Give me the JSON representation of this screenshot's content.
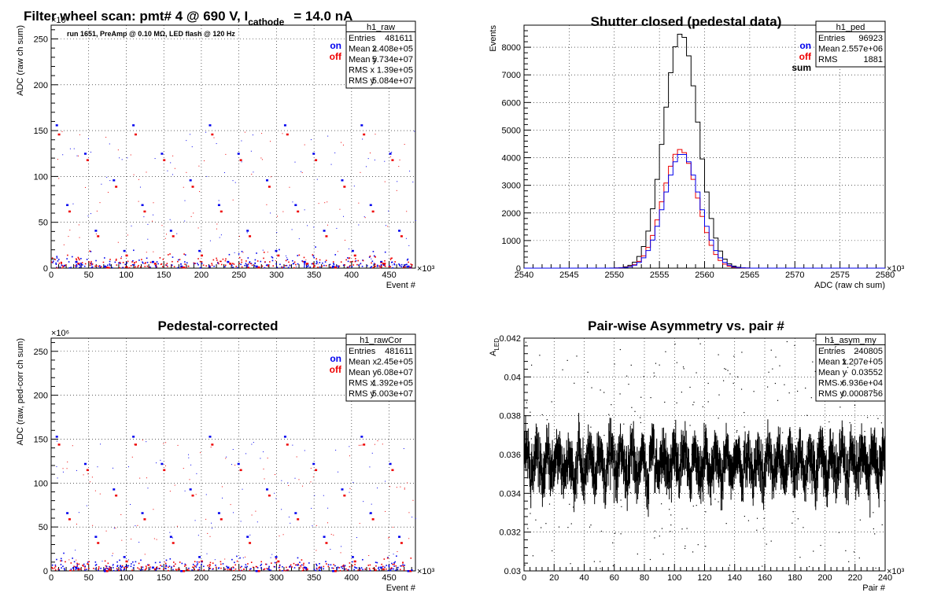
{
  "chart_data": [
    {
      "id": "raw",
      "type": "scatter",
      "title": "Filter wheel scan: pmt#   4 @   690 V, I",
      "title_sub": "cathode",
      "title_tail": "= 14.0 nA",
      "note": "run 1651, PreAmp @ 0.10 MΩ, LED flash @  120 Hz",
      "xlabel": "Event #",
      "ylabel": "ADC (raw ch sum)",
      "x_exponent": "×10³",
      "y_exponent": "×10⁶",
      "xlim": [
        0,
        485
      ],
      "ylim": [
        0,
        265
      ],
      "xticks": [
        "0",
        "50",
        "100",
        "150",
        "200",
        "250",
        "300",
        "350",
        "400",
        "450"
      ],
      "yticks": [
        "0",
        "50",
        "100",
        "150",
        "200",
        "250"
      ],
      "legend": [
        {
          "name": "on",
          "color": "#0000ee"
        },
        {
          "name": "off",
          "color": "#ee0000"
        }
      ],
      "stats": {
        "name": "h1_raw",
        "rows": [
          [
            "Entries",
            "481611"
          ],
          [
            "Mean x",
            "2.408e+05"
          ],
          [
            "Mean y",
            "5.734e+07"
          ],
          [
            "RMS x",
            "1.39e+05"
          ],
          [
            "RMS y",
            "5.084e+07"
          ]
        ]
      },
      "on_levels": [
        156,
        125,
        96,
        69,
        41,
        19,
        7,
        2
      ],
      "off_levels": [
        146,
        118,
        89,
        62,
        35,
        14,
        5,
        1
      ],
      "grid": true
    },
    {
      "id": "ped",
      "type": "histogram",
      "title": "Shutter closed (pedestal data)",
      "xlabel": "ADC (raw ch sum)",
      "ylabel": "Events",
      "x_exponent": "×10³",
      "xlim": [
        2540,
        2580
      ],
      "ylim": [
        0,
        8800
      ],
      "xticks": [
        "2540",
        "2545",
        "2550",
        "2555",
        "2560",
        "2565",
        "2570",
        "2575",
        "2580"
      ],
      "yticks": [
        "0",
        "1000",
        "2000",
        "3000",
        "4000",
        "5000",
        "6000",
        "7000",
        "8000"
      ],
      "legend": [
        {
          "name": "on",
          "color": "#0000ee"
        },
        {
          "name": "off",
          "color": "#ee0000"
        },
        {
          "name": "sum",
          "color": "#000000"
        }
      ],
      "stats": {
        "name": "h1_ped",
        "rows": [
          [
            "Entries",
            "96923"
          ],
          [
            "Mean",
            "2.557e+06"
          ],
          [
            "RMS",
            "1881"
          ]
        ]
      },
      "mean": 2557.4,
      "sigma": 1.9,
      "bin_width": 0.5,
      "sum_peak": 8500,
      "on_peak": 4150,
      "off_peak": 4300,
      "grid": true
    },
    {
      "id": "rawcor",
      "type": "scatter",
      "title": "Pedestal-corrected",
      "xlabel": "Event #",
      "ylabel": "ADC (raw, ped-corr ch sum)",
      "x_exponent": "×10³",
      "y_exponent": "×10⁶",
      "xlim": [
        0,
        485
      ],
      "ylim": [
        0,
        265
      ],
      "xticks": [
        "0",
        "50",
        "100",
        "150",
        "200",
        "250",
        "300",
        "350",
        "400",
        "450"
      ],
      "yticks": [
        "0",
        "50",
        "100",
        "150",
        "200",
        "250"
      ],
      "legend": [
        {
          "name": "on",
          "color": "#0000ee"
        },
        {
          "name": "off",
          "color": "#ee0000"
        }
      ],
      "stats": {
        "name": "h1_rawCor",
        "rows": [
          [
            "Entries",
            "481611"
          ],
          [
            "Mean x",
            "2.45e+05"
          ],
          [
            "Mean y",
            "6.08e+07"
          ],
          [
            "RMS x",
            "1.392e+05"
          ],
          [
            "RMS y",
            "5.003e+07"
          ]
        ]
      },
      "on_levels": [
        153,
        122,
        93,
        66,
        39,
        16,
        4,
        0
      ],
      "off_levels": [
        144,
        115,
        86,
        59,
        32,
        11,
        2,
        0
      ],
      "grid": true
    },
    {
      "id": "asym",
      "type": "scatter",
      "title": "Pair-wise Asymmetry vs. pair #",
      "xlabel": "Pair #",
      "ylabel": "A",
      "ylabel_sub": "LED",
      "x_exponent": "×10³",
      "xlim": [
        0,
        240
      ],
      "ylim": [
        0.03,
        0.042
      ],
      "xticks": [
        "0",
        "20",
        "40",
        "60",
        "80",
        "100",
        "120",
        "140",
        "160",
        "180",
        "200",
        "220",
        "240"
      ],
      "yticks": [
        "0.03",
        "0.032",
        "0.034",
        "0.036",
        "0.038",
        "0.04",
        "0.042"
      ],
      "stats": {
        "name": "h1_asym_my",
        "rows": [
          [
            "Entries",
            "240805"
          ],
          [
            "Mean x",
            "1.207e+05"
          ],
          [
            "Mean y",
            "0.03552"
          ],
          [
            "RMS x",
            "6.936e+04"
          ],
          [
            "RMS y",
            "0.0008756"
          ]
        ]
      },
      "band_center": 0.03552,
      "grid": true
    }
  ]
}
